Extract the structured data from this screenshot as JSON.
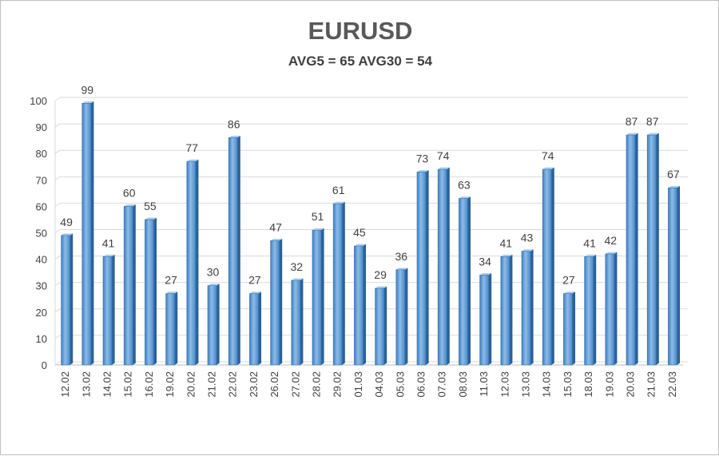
{
  "chart_data": {
    "type": "bar",
    "title": "EURUSD",
    "subtitle": "AVG5 = 65 AVG30 = 54",
    "xlabel": "",
    "ylabel": "",
    "ylim": [
      0,
      100
    ],
    "yticks": [
      0,
      10,
      20,
      30,
      40,
      50,
      60,
      70,
      80,
      90,
      100
    ],
    "grid": true,
    "legend": "none",
    "bar_color": "#5b9bd5",
    "categories": [
      "12.02",
      "13.02",
      "14.02",
      "15.02",
      "16.02",
      "19.02",
      "20.02",
      "21.02",
      "22.02",
      "23.02",
      "26.02",
      "27.02",
      "28.02",
      "29.02",
      "01.03",
      "04.03",
      "05.03",
      "06.03",
      "07.03",
      "08.03",
      "11.03",
      "12.03",
      "13.03",
      "14.03",
      "15.03",
      "18.03",
      "19.03",
      "20.03",
      "21.03",
      "22.03"
    ],
    "values": [
      49,
      99,
      41,
      60,
      55,
      27,
      77,
      30,
      86,
      27,
      47,
      32,
      51,
      61,
      45,
      29,
      36,
      73,
      74,
      63,
      34,
      41,
      43,
      74,
      27,
      41,
      42,
      87,
      87,
      67
    ]
  }
}
